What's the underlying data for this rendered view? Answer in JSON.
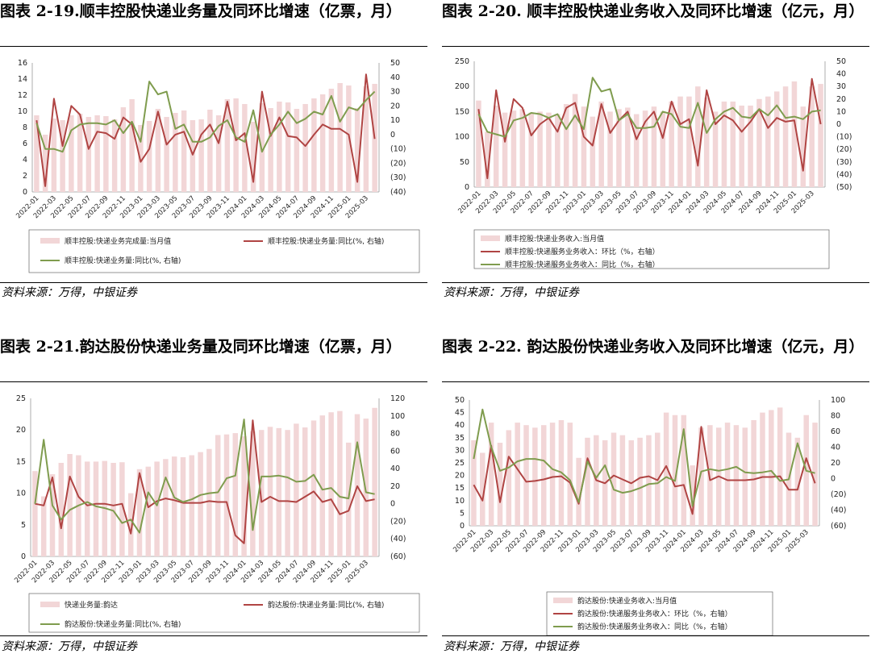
{
  "colors": {
    "bar": "#f2d6d7",
    "mom": "#b04443",
    "yoy": "#7f9c4e",
    "neg": "#c0393b"
  },
  "source": "资料来源：万得，中银证券",
  "chart_data": [
    {
      "id": "c1",
      "type": "bar+line",
      "title": "图表 2-19.顺丰控股快递业务量及同环比增速（亿票，月）",
      "categories": [
        "2022-01",
        "2022-02",
        "2022-03",
        "2022-04",
        "2022-05",
        "2022-06",
        "2022-07",
        "2022-08",
        "2022-09",
        "2022-10",
        "2022-11",
        "2022-12",
        "2023-01",
        "2023-02",
        "2023-03",
        "2023-04",
        "2023-05",
        "2023-06",
        "2023-07",
        "2023-08",
        "2023-09",
        "2023-10",
        "2023-11",
        "2023-12",
        "2024-01",
        "2024-02",
        "2024-03",
        "2024-04",
        "2024-05",
        "2024-06",
        "2024-07",
        "2024-08",
        "2024-09",
        "2024-10",
        "2024-11",
        "2024-12",
        "2025-01",
        "2025-02",
        "2025-03",
        "2025-04"
      ],
      "tick_labels": [
        "2022-01",
        "2022-03",
        "2022-05",
        "2022-07",
        "2022-09",
        "2022-11",
        "2023-01",
        "2023-03",
        "2023-05",
        "2023-07",
        "2023-09",
        "2023-11",
        "2024-01",
        "2024-03",
        "2024-05",
        "2024-07",
        "2024-09",
        "2024-11",
        "2025-01",
        "2025-03"
      ],
      "left_ylim": [
        0,
        16
      ],
      "left_ticks": [
        "0",
        "2",
        "4",
        "6",
        "8",
        "10",
        "12",
        "14",
        "16"
      ],
      "right_ylim": [
        -40,
        50
      ],
      "right_ticks": [
        "(40)",
        "(30)",
        "(20)",
        "(10)",
        "0",
        "10",
        "20",
        "30",
        "40",
        "50"
      ],
      "series": [
        {
          "name": "顺丰控股:快递业务完成量:当月值",
          "kind": "bar",
          "axis": "left",
          "values": [
            9.5,
            7.1,
            9.1,
            8.9,
            9.5,
            9.7,
            9.3,
            9.5,
            9.4,
            9.0,
            10.5,
            11.5,
            8.3,
            8.8,
            10.3,
            9.3,
            9.8,
            10.1,
            8.9,
            9.0,
            10.2,
            9.5,
            11.5,
            11.6,
            10.9,
            8.7,
            11.0,
            10.4,
            11.2,
            11.1,
            10.3,
            10.9,
            11.6,
            12.1,
            12.8,
            13.5,
            13.2,
            10.4,
            13.1,
            13.4
          ]
        },
        {
          "name": "顺丰控股:快递业务量:同比(%, 右轴)",
          "kind": "line",
          "axis": "right",
          "color": "mom",
          "values": [
            10,
            -36,
            25,
            -8,
            20,
            14,
            -10,
            2,
            1,
            -3,
            12,
            7,
            -19,
            -10,
            16,
            -7,
            0,
            2,
            -14,
            0,
            7,
            -6,
            23,
            -4,
            1,
            -33,
            30,
            -1,
            12,
            -1,
            -2,
            -8,
            0,
            7,
            4,
            4,
            0,
            -33,
            42,
            -3
          ]
        },
        {
          "name": "顺丰控股:快递业务量:同比(%, 右轴)",
          "kind": "line",
          "axis": "right",
          "color": "yoy",
          "values": [
            8,
            -10,
            -10,
            -12,
            3,
            7,
            8,
            8,
            7,
            10,
            1,
            9,
            -5,
            37,
            28,
            30,
            4,
            7,
            -5,
            -5,
            -2,
            6,
            10,
            -2,
            -5,
            17,
            -12,
            0,
            7,
            16,
            8,
            11,
            16,
            14,
            27,
            9,
            19,
            17,
            24,
            30
          ]
        }
      ],
      "legend": [
        "顺丰控股:快递业务完成量:当月值",
        "顺丰控股:快递业务量:同比(%, 右轴)",
        "顺丰控股:快递业务量:同比(%, 右轴)"
      ]
    },
    {
      "id": "c2",
      "type": "bar+line",
      "title": "图表 2-20. 顺丰控股快递业务收入及同环比增速（亿元，月）",
      "categories": [
        "2022-01",
        "2022-02",
        "2022-03",
        "2022-04",
        "2022-05",
        "2022-06",
        "2022-07",
        "2022-08",
        "2022-09",
        "2022-10",
        "2022-11",
        "2022-12",
        "2023-01",
        "2023-02",
        "2023-03",
        "2023-04",
        "2023-05",
        "2023-06",
        "2023-07",
        "2023-08",
        "2023-09",
        "2023-10",
        "2023-11",
        "2023-12",
        "2024-01",
        "2024-02",
        "2024-03",
        "2024-04",
        "2024-05",
        "2024-06",
        "2024-07",
        "2024-08",
        "2024-09",
        "2024-10",
        "2024-11",
        "2024-12",
        "2025-01",
        "2025-02",
        "2025-03",
        "2025-04"
      ],
      "tick_labels": [
        "2022-01",
        "2022-03",
        "2022-05",
        "2022-07",
        "2022-09",
        "2022-11",
        "2023-01",
        "2023-03",
        "2023-05",
        "2023-07",
        "2023-09",
        "2023-11",
        "2024-01",
        "2024-03",
        "2024-05",
        "2024-07",
        "2024-09",
        "2024-11",
        "2025-01",
        "2025-03"
      ],
      "left_ylim": [
        0,
        250
      ],
      "left_ticks": [
        "0",
        "50",
        "100",
        "150",
        "200",
        "250"
      ],
      "right_ylim": [
        -50,
        50
      ],
      "right_ticks": [
        "(50)",
        "(40)",
        "(30)",
        "(20)",
        "(10)",
        "0",
        "10",
        "20",
        "30",
        "40",
        "50"
      ],
      "series": [
        {
          "name": "顺丰控股:快递业务收入:当月值",
          "kind": "bar",
          "axis": "left",
          "values": [
            172,
            110,
            162,
            148,
            152,
            155,
            148,
            150,
            148,
            145,
            165,
            185,
            160,
            140,
            170,
            150,
            155,
            158,
            145,
            152,
            160,
            150,
            170,
            180,
            180,
            200,
            178,
            150,
            170,
            170,
            162,
            162,
            175,
            180,
            190,
            200,
            210,
            160,
            200,
            205
          ]
        },
        {
          "name": "顺丰控股:快递服务业务收入：环比（%，右轴）",
          "kind": "line",
          "axis": "right",
          "color": "mom",
          "values": [
            12,
            -43,
            27,
            -14,
            20,
            13,
            -9,
            0,
            5,
            -6,
            13,
            17,
            -10,
            -17,
            16,
            -7,
            3,
            10,
            -12,
            2,
            10,
            -11,
            18,
            0,
            4,
            -33,
            27,
            0,
            7,
            3,
            -6,
            2,
            12,
            -3,
            5,
            2,
            3,
            -37,
            36,
            0
          ]
        },
        {
          "name": "顺丰控股:快递服务业务收入：同比（%，右轴）",
          "kind": "line",
          "axis": "right",
          "color": "yoy",
          "values": [
            8,
            -6,
            -8,
            -10,
            3,
            5,
            9,
            8,
            5,
            8,
            -4,
            7,
            -4,
            37,
            26,
            28,
            3,
            8,
            -3,
            -3,
            -2,
            10,
            8,
            -2,
            -3,
            17,
            -7,
            4,
            10,
            13,
            6,
            5,
            12,
            7,
            15,
            5,
            6,
            4,
            10,
            11
          ]
        }
      ],
      "legend": [
        "顺丰控股:快递业务收入:当月值",
        "顺丰控股:快递服务业务收入：环比（%，右轴）",
        "顺丰控股:快递服务业务收入：同比（%，右轴）"
      ]
    },
    {
      "id": "c3",
      "type": "bar+line",
      "title": "图表 2-21.韵达股份快递业务量及同环比增速（亿票，月）",
      "categories": [
        "2022-01",
        "2022-02",
        "2022-03",
        "2022-04",
        "2022-05",
        "2022-06",
        "2022-07",
        "2022-08",
        "2022-09",
        "2022-10",
        "2022-11",
        "2022-12",
        "2023-01",
        "2023-02",
        "2023-03",
        "2023-04",
        "2023-05",
        "2023-06",
        "2023-07",
        "2023-08",
        "2023-09",
        "2023-10",
        "2023-11",
        "2023-12",
        "2024-01",
        "2024-02",
        "2024-03",
        "2024-04",
        "2024-05",
        "2024-06",
        "2024-07",
        "2024-08",
        "2024-09",
        "2024-10",
        "2024-11",
        "2024-12",
        "2025-01",
        "2025-02",
        "2025-03",
        "2025-04"
      ],
      "tick_labels": [
        "2022-01",
        "2022-03",
        "2022-05",
        "2022-07",
        "2022-09",
        "2022-11",
        "2023-01",
        "2023-03",
        "2023-05",
        "2023-07",
        "2023-09",
        "2023-11",
        "2024-01",
        "2024-03",
        "2024-05",
        "2024-07",
        "2024-09",
        "2024-11",
        "2025-01",
        "2025-03"
      ],
      "left_ylim": [
        0,
        25
      ],
      "left_ticks": [
        "0",
        "5",
        "10",
        "15",
        "20",
        "25"
      ],
      "right_ylim": [
        -60,
        120
      ],
      "right_ticks": [
        "(60)",
        "(40)",
        "(20)",
        "0",
        "20",
        "40",
        "60",
        "80",
        "100",
        "120"
      ],
      "series": [
        {
          "name": "快递业务量:韵达",
          "kind": "bar",
          "axis": "left",
          "values": [
            13.5,
            9.5,
            13.0,
            14.8,
            16.2,
            16.0,
            15.0,
            15.0,
            15.1,
            14.8,
            14.9,
            10.0,
            13.8,
            14.2,
            15.0,
            15.4,
            15.8,
            15.7,
            16.0,
            16.5,
            17.0,
            19.2,
            19.3,
            19.5,
            19.0,
            19.8,
            20.0,
            20.5,
            20.3,
            20.0,
            21.0,
            20.4,
            21.5,
            22.3,
            22.8,
            23.0,
            18.0,
            22.5,
            21.8,
            23.5
          ]
        },
        {
          "name": "韵达股份:快递业务量:同比(%, 右轴)",
          "kind": "line",
          "axis": "right",
          "color": "mom",
          "values": [
            0,
            -2,
            30,
            -28,
            31,
            8,
            -2,
            0,
            0,
            -2,
            0,
            -34,
            35,
            -4,
            3,
            6,
            4,
            1,
            1,
            1,
            3,
            2,
            2,
            -36,
            -45,
            95,
            2,
            8,
            3,
            3,
            2,
            8,
            14,
            2,
            5,
            -12,
            -8,
            20,
            3,
            5
          ]
        },
        {
          "name": "韵达股份:快递业务量:同比(%, 右轴)",
          "kind": "line",
          "axis": "right",
          "color": "yoy",
          "values": [
            0,
            73,
            -2,
            -18,
            -7,
            -2,
            2,
            -3,
            -5,
            -8,
            -22,
            -18,
            -33,
            13,
            -2,
            30,
            7,
            2,
            5,
            10,
            12,
            13,
            29,
            32,
            96,
            -30,
            31,
            31,
            32,
            30,
            25,
            26,
            33,
            16,
            18,
            8,
            6,
            70,
            13,
            11
          ]
        }
      ],
      "legend": [
        "快递业务量:韵达",
        "韵达股份:快递业务量:同比(%, 右轴)",
        "韵达股份:快递业务量:同比(%, 右轴)"
      ]
    },
    {
      "id": "c4",
      "type": "bar+line",
      "title": "图表 2-22. 韵达股份快递业务收入及同环比增速（亿元，月）",
      "categories": [
        "2022-01",
        "2022-02",
        "2022-03",
        "2022-04",
        "2022-05",
        "2022-06",
        "2022-07",
        "2022-08",
        "2022-09",
        "2022-10",
        "2022-11",
        "2022-12",
        "2023-01",
        "2023-02",
        "2023-03",
        "2023-04",
        "2023-05",
        "2023-06",
        "2023-07",
        "2023-08",
        "2023-09",
        "2023-10",
        "2023-11",
        "2023-12",
        "2024-01",
        "2024-02",
        "2024-03",
        "2024-04",
        "2024-05",
        "2024-06",
        "2024-07",
        "2024-08",
        "2024-09",
        "2024-10",
        "2024-11",
        "2024-12",
        "2025-01",
        "2025-02",
        "2025-03",
        "2025-04"
      ],
      "tick_labels": [
        "2022-01",
        "2022-03",
        "2022-05",
        "2022-07",
        "2022-09",
        "2022-11",
        "2023-01",
        "2023-03",
        "2023-05",
        "2023-07",
        "2023-09",
        "2023-11",
        "2024-01",
        "2024-03",
        "2024-05",
        "2024-07",
        "2024-09",
        "2024-11",
        "2025-01",
        "2025-03"
      ],
      "left_ylim": [
        0,
        50
      ],
      "left_ticks": [
        "0",
        "5",
        "10",
        "15",
        "20",
        "25",
        "30",
        "35",
        "40",
        "45",
        "50"
      ],
      "right_ylim": [
        -60,
        100
      ],
      "right_ticks": [
        "(60)",
        "(40)",
        "(20)",
        "0",
        "20",
        "40",
        "60",
        "80",
        "100"
      ],
      "series": [
        {
          "name": "韵达股份:快递业务收入:当月值",
          "kind": "bar",
          "axis": "left",
          "values": [
            34,
            29,
            41,
            33,
            38,
            41,
            40,
            39,
            40,
            41,
            42,
            41,
            27,
            35,
            36,
            34,
            37,
            36,
            34,
            35,
            36,
            37,
            45,
            44,
            44,
            24,
            39,
            40,
            39,
            41,
            40,
            39,
            42,
            45,
            46,
            47,
            37,
            35,
            44,
            41
          ]
        },
        {
          "name": "韵达股份:快递服务业务收入：环比（%，右轴）",
          "kind": "line",
          "axis": "right",
          "color": "mom",
          "values": [
            -8,
            -28,
            42,
            -30,
            28,
            12,
            -4,
            -3,
            -1,
            2,
            3,
            -5,
            -32,
            26,
            -2,
            -6,
            4,
            -1,
            -6,
            1,
            3,
            -2,
            16,
            -10,
            -8,
            -45,
            66,
            -2,
            3,
            -2,
            -2,
            -2,
            -1,
            2,
            2,
            3,
            -14,
            -14,
            26,
            -6
          ]
        },
        {
          "name": "韵达股份:快递服务业务收入：同比（%，右轴）",
          "kind": "line",
          "axis": "right",
          "color": "yoy",
          "values": [
            25,
            88,
            40,
            10,
            14,
            22,
            25,
            25,
            23,
            12,
            8,
            -2,
            -30,
            22,
            1,
            17,
            -14,
            -18,
            -16,
            -12,
            -7,
            -6,
            2,
            -3,
            63,
            -35,
            9,
            12,
            10,
            12,
            15,
            8,
            7,
            8,
            10,
            -3,
            -1,
            45,
            10,
            7
          ]
        }
      ],
      "legend": [
        "韵达股份:快递业务收入:当月值",
        "韵达股份:快递服务业务收入：环比（%，右轴）",
        "韵达股份:快递服务业务收入：同比（%，右轴）"
      ]
    }
  ]
}
